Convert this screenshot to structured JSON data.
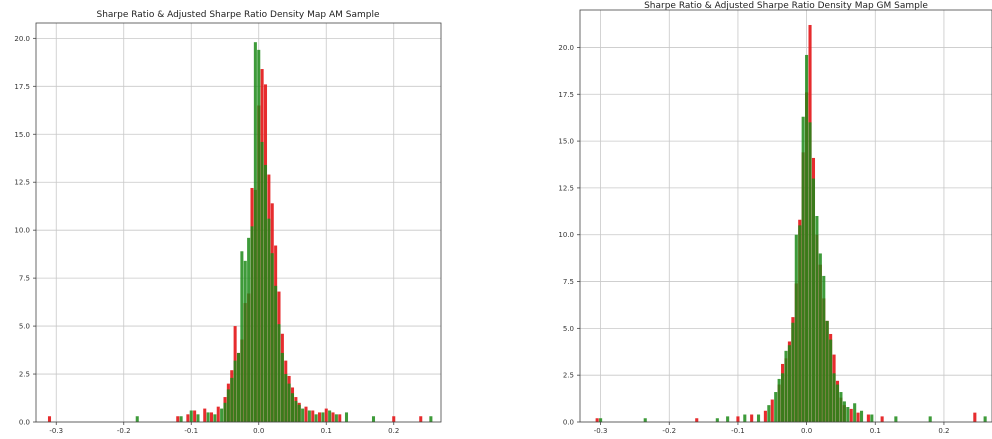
{
  "chart_data": [
    {
      "type": "bar",
      "title": "Sharpe Ratio & Adjusted Sharpe Ratio Density Map AM Sample",
      "xlabel": "",
      "ylabel": "",
      "xlim": [
        -0.33,
        0.27
      ],
      "ylim": [
        0,
        20.8
      ],
      "xticks": [
        -0.3,
        -0.2,
        -0.1,
        0.0,
        0.1,
        0.2
      ],
      "xtick_labels": [
        "-0.3",
        "-0.2",
        "-0.1",
        "0.0",
        "0.1",
        "0.2"
      ],
      "yticks": [
        0.0,
        2.5,
        5.0,
        7.5,
        10.0,
        12.5,
        15.0,
        17.5,
        20.0
      ],
      "ytick_labels": [
        "0.0",
        "2.5",
        "5.0",
        "7.5",
        "10.0",
        "12.5",
        "15.0",
        "17.5",
        "20.0"
      ],
      "grid": true,
      "series": [
        {
          "color": "#e41a1c",
          "bins": [
            {
              "x": -0.31,
              "h": 0.3
            },
            {
              "x": -0.12,
              "h": 0.3
            },
            {
              "x": -0.105,
              "h": 0.4
            },
            {
              "x": -0.095,
              "h": 0.6
            },
            {
              "x": -0.08,
              "h": 0.7
            },
            {
              "x": -0.07,
              "h": 0.5
            },
            {
              "x": -0.06,
              "h": 0.8
            },
            {
              "x": -0.05,
              "h": 1.3
            },
            {
              "x": -0.045,
              "h": 2.0
            },
            {
              "x": -0.04,
              "h": 2.7
            },
            {
              "x": -0.035,
              "h": 5.0
            },
            {
              "x": -0.03,
              "h": 3.6
            },
            {
              "x": -0.025,
              "h": 4.3
            },
            {
              "x": -0.02,
              "h": 6.2
            },
            {
              "x": -0.015,
              "h": 6.7
            },
            {
              "x": -0.01,
              "h": 12.2
            },
            {
              "x": -0.005,
              "h": 12.1
            },
            {
              "x": 0.0,
              "h": 16.5
            },
            {
              "x": 0.005,
              "h": 18.4
            },
            {
              "x": 0.01,
              "h": 17.6
            },
            {
              "x": 0.015,
              "h": 12.9
            },
            {
              "x": 0.02,
              "h": 11.4
            },
            {
              "x": 0.025,
              "h": 9.2
            },
            {
              "x": 0.03,
              "h": 6.8
            },
            {
              "x": 0.035,
              "h": 4.6
            },
            {
              "x": 0.04,
              "h": 3.2
            },
            {
              "x": 0.045,
              "h": 2.4
            },
            {
              "x": 0.05,
              "h": 1.8
            },
            {
              "x": 0.055,
              "h": 1.3
            },
            {
              "x": 0.06,
              "h": 1.0
            },
            {
              "x": 0.07,
              "h": 0.8
            },
            {
              "x": 0.08,
              "h": 0.6
            },
            {
              "x": 0.09,
              "h": 0.5
            },
            {
              "x": 0.1,
              "h": 0.7
            },
            {
              "x": 0.11,
              "h": 0.5
            },
            {
              "x": 0.12,
              "h": 0.4
            },
            {
              "x": 0.2,
              "h": 0.3
            },
            {
              "x": 0.24,
              "h": 0.3
            }
          ]
        },
        {
          "color": "#1c8a17",
          "bins": [
            {
              "x": -0.18,
              "h": 0.3
            },
            {
              "x": -0.115,
              "h": 0.3
            },
            {
              "x": -0.1,
              "h": 0.6
            },
            {
              "x": -0.09,
              "h": 0.4
            },
            {
              "x": -0.075,
              "h": 0.5
            },
            {
              "x": -0.065,
              "h": 0.4
            },
            {
              "x": -0.055,
              "h": 0.7
            },
            {
              "x": -0.05,
              "h": 1.0
            },
            {
              "x": -0.045,
              "h": 1.7
            },
            {
              "x": -0.04,
              "h": 2.3
            },
            {
              "x": -0.035,
              "h": 3.2
            },
            {
              "x": -0.03,
              "h": 3.6
            },
            {
              "x": -0.025,
              "h": 8.9
            },
            {
              "x": -0.02,
              "h": 8.4
            },
            {
              "x": -0.015,
              "h": 9.6
            },
            {
              "x": -0.01,
              "h": 10.2
            },
            {
              "x": -0.005,
              "h": 19.8
            },
            {
              "x": 0.0,
              "h": 19.4
            },
            {
              "x": 0.005,
              "h": 14.6
            },
            {
              "x": 0.01,
              "h": 13.4
            },
            {
              "x": 0.015,
              "h": 10.6
            },
            {
              "x": 0.02,
              "h": 8.8
            },
            {
              "x": 0.025,
              "h": 7.1
            },
            {
              "x": 0.03,
              "h": 5.1
            },
            {
              "x": 0.035,
              "h": 3.6
            },
            {
              "x": 0.04,
              "h": 2.5
            },
            {
              "x": 0.045,
              "h": 2.0
            },
            {
              "x": 0.05,
              "h": 1.5
            },
            {
              "x": 0.055,
              "h": 1.1
            },
            {
              "x": 0.06,
              "h": 0.9
            },
            {
              "x": 0.065,
              "h": 0.7
            },
            {
              "x": 0.075,
              "h": 0.6
            },
            {
              "x": 0.085,
              "h": 0.4
            },
            {
              "x": 0.095,
              "h": 0.5
            },
            {
              "x": 0.105,
              "h": 0.6
            },
            {
              "x": 0.115,
              "h": 0.4
            },
            {
              "x": 0.13,
              "h": 0.5
            },
            {
              "x": 0.17,
              "h": 0.3
            },
            {
              "x": 0.255,
              "h": 0.3
            }
          ]
        }
      ]
    },
    {
      "type": "bar",
      "title": "Sharpe Ratio & Adjusted Sharpe Ratio Density Map GM Sample",
      "xlabel": "",
      "ylabel": "",
      "xlim": [
        -0.33,
        0.27
      ],
      "ylim": [
        0,
        22.0
      ],
      "xticks": [
        -0.3,
        -0.2,
        -0.1,
        0.0,
        0.1,
        0.2
      ],
      "xtick_labels": [
        "-0.3",
        "-0.2",
        "-0.1",
        "0.0",
        "0.1",
        "0.2"
      ],
      "yticks": [
        0.0,
        2.5,
        5.0,
        7.5,
        10.0,
        12.5,
        15.0,
        17.5,
        20.0
      ],
      "ytick_labels": [
        "0.0",
        "2.5",
        "5.0",
        "7.5",
        "10.0",
        "12.5",
        "15.0",
        "17.5",
        "20.0"
      ],
      "grid": true,
      "series": [
        {
          "color": "#e41a1c",
          "bins": [
            {
              "x": -0.305,
              "h": 0.2
            },
            {
              "x": -0.16,
              "h": 0.2
            },
            {
              "x": -0.1,
              "h": 0.3
            },
            {
              "x": -0.08,
              "h": 0.4
            },
            {
              "x": -0.06,
              "h": 0.6
            },
            {
              "x": -0.05,
              "h": 1.2
            },
            {
              "x": -0.04,
              "h": 2.0
            },
            {
              "x": -0.035,
              "h": 3.1
            },
            {
              "x": -0.03,
              "h": 3.4
            },
            {
              "x": -0.025,
              "h": 4.3
            },
            {
              "x": -0.02,
              "h": 5.6
            },
            {
              "x": -0.015,
              "h": 7.4
            },
            {
              "x": -0.01,
              "h": 10.8
            },
            {
              "x": -0.005,
              "h": 14.4
            },
            {
              "x": 0.0,
              "h": 17.6
            },
            {
              "x": 0.005,
              "h": 21.2
            },
            {
              "x": 0.01,
              "h": 14.1
            },
            {
              "x": 0.015,
              "h": 10.0
            },
            {
              "x": 0.02,
              "h": 8.4
            },
            {
              "x": 0.025,
              "h": 6.6
            },
            {
              "x": 0.03,
              "h": 5.4
            },
            {
              "x": 0.035,
              "h": 4.7
            },
            {
              "x": 0.04,
              "h": 3.6
            },
            {
              "x": 0.045,
              "h": 2.2
            },
            {
              "x": 0.05,
              "h": 1.3
            },
            {
              "x": 0.055,
              "h": 0.9
            },
            {
              "x": 0.065,
              "h": 0.7
            },
            {
              "x": 0.075,
              "h": 0.5
            },
            {
              "x": 0.09,
              "h": 0.4
            },
            {
              "x": 0.11,
              "h": 0.3
            },
            {
              "x": 0.245,
              "h": 0.5
            }
          ]
        },
        {
          "color": "#1c8a17",
          "bins": [
            {
              "x": -0.3,
              "h": 0.2
            },
            {
              "x": -0.235,
              "h": 0.2
            },
            {
              "x": -0.13,
              "h": 0.2
            },
            {
              "x": -0.115,
              "h": 0.3
            },
            {
              "x": -0.09,
              "h": 0.4
            },
            {
              "x": -0.07,
              "h": 0.4
            },
            {
              "x": -0.055,
              "h": 0.9
            },
            {
              "x": -0.045,
              "h": 1.6
            },
            {
              "x": -0.04,
              "h": 2.3
            },
            {
              "x": -0.035,
              "h": 2.6
            },
            {
              "x": -0.03,
              "h": 3.8
            },
            {
              "x": -0.025,
              "h": 4.1
            },
            {
              "x": -0.02,
              "h": 5.3
            },
            {
              "x": -0.015,
              "h": 10.0
            },
            {
              "x": -0.01,
              "h": 10.5
            },
            {
              "x": -0.005,
              "h": 16.3
            },
            {
              "x": 0.0,
              "h": 19.6
            },
            {
              "x": 0.005,
              "h": 16.0
            },
            {
              "x": 0.01,
              "h": 13.0
            },
            {
              "x": 0.015,
              "h": 11.0
            },
            {
              "x": 0.02,
              "h": 9.0
            },
            {
              "x": 0.025,
              "h": 7.8
            },
            {
              "x": 0.03,
              "h": 5.4
            },
            {
              "x": 0.035,
              "h": 4.4
            },
            {
              "x": 0.04,
              "h": 2.6
            },
            {
              "x": 0.045,
              "h": 2.0
            },
            {
              "x": 0.05,
              "h": 1.6
            },
            {
              "x": 0.055,
              "h": 1.1
            },
            {
              "x": 0.06,
              "h": 0.8
            },
            {
              "x": 0.07,
              "h": 1.0
            },
            {
              "x": 0.08,
              "h": 0.6
            },
            {
              "x": 0.095,
              "h": 0.4
            },
            {
              "x": 0.13,
              "h": 0.3
            },
            {
              "x": 0.18,
              "h": 0.3
            },
            {
              "x": 0.26,
              "h": 0.3
            }
          ]
        }
      ]
    }
  ]
}
